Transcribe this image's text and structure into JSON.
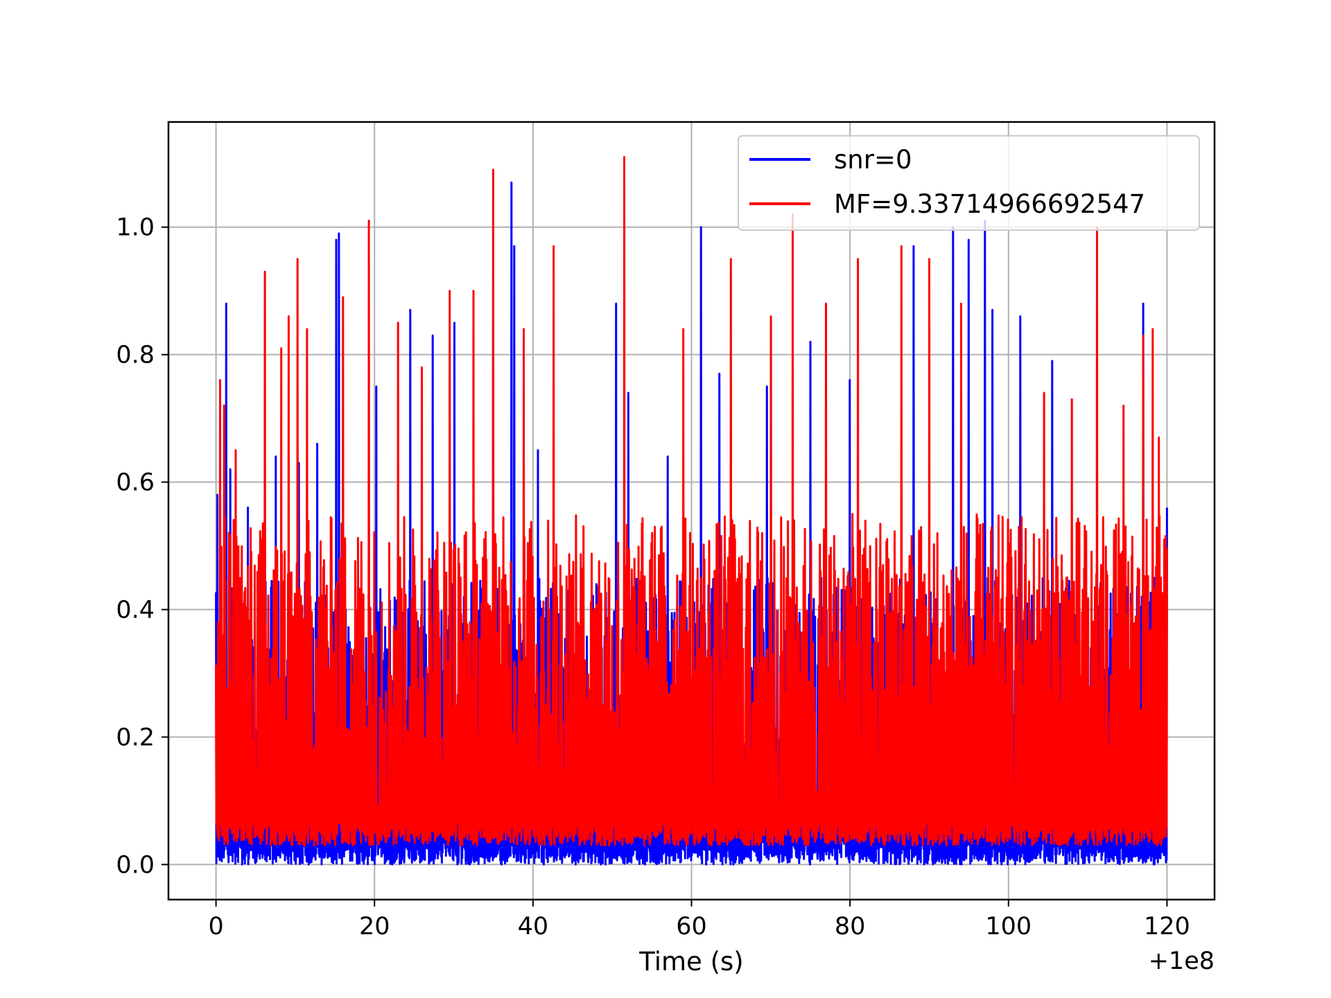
{
  "chart_data": {
    "type": "line",
    "title": "",
    "xlabel": "Time (s)",
    "ylabel": "",
    "x_offset_label": "+1e8",
    "xlim": [
      -6,
      126
    ],
    "ylim": [
      -0.055,
      1.165
    ],
    "xticks": [
      0,
      20,
      40,
      60,
      80,
      100,
      120
    ],
    "xtick_labels": [
      "0",
      "20",
      "40",
      "60",
      "80",
      "100",
      "120"
    ],
    "yticks": [
      0.0,
      0.2,
      0.4,
      0.6,
      0.8,
      1.0
    ],
    "ytick_labels": [
      "0.0",
      "0.2",
      "0.4",
      "0.6",
      "0.8",
      "1.0"
    ],
    "grid": true,
    "legend_position": "upper-right",
    "x_range": [
      0,
      120
    ],
    "series": [
      {
        "name": "snr=0",
        "color": "#0000ff",
        "typical_min": 0.0,
        "typical_max": 0.45,
        "peaks": [
          [
            0.2,
            0.58
          ],
          [
            1.3,
            0.88
          ],
          [
            1.8,
            0.62
          ],
          [
            4.0,
            0.56
          ],
          [
            7.5,
            0.64
          ],
          [
            10.5,
            0.63
          ],
          [
            12.8,
            0.66
          ],
          [
            15.2,
            0.98
          ],
          [
            15.5,
            0.99
          ],
          [
            20.2,
            0.75
          ],
          [
            24.5,
            0.87
          ],
          [
            27.3,
            0.83
          ],
          [
            30.1,
            0.85
          ],
          [
            35.0,
            0.85
          ],
          [
            37.3,
            1.07
          ],
          [
            37.6,
            0.97
          ],
          [
            40.6,
            0.65
          ],
          [
            50.5,
            0.88
          ],
          [
            52.0,
            0.74
          ],
          [
            57.0,
            0.64
          ],
          [
            61.2,
            1.0
          ],
          [
            63.5,
            0.77
          ],
          [
            69.5,
            0.75
          ],
          [
            75.0,
            0.82
          ],
          [
            80.0,
            0.76
          ],
          [
            88.0,
            0.97
          ],
          [
            93.0,
            1.0
          ],
          [
            95.0,
            0.98
          ],
          [
            97.0,
            1.01
          ],
          [
            98.0,
            0.87
          ],
          [
            101.5,
            0.86
          ],
          [
            105.5,
            0.79
          ],
          [
            117.0,
            0.88
          ],
          [
            120.0,
            0.56
          ]
        ]
      },
      {
        "name": "MF=9.33714966692547",
        "color": "#ff0000",
        "typical_min": 0.03,
        "typical_max": 0.55,
        "peaks": [
          [
            0.5,
            0.76
          ],
          [
            1.0,
            0.72
          ],
          [
            2.5,
            0.65
          ],
          [
            6.2,
            0.93
          ],
          [
            8.2,
            0.81
          ],
          [
            9.2,
            0.86
          ],
          [
            10.3,
            0.95
          ],
          [
            11.5,
            0.84
          ],
          [
            16.0,
            0.89
          ],
          [
            19.3,
            1.01
          ],
          [
            23.0,
            0.85
          ],
          [
            26.0,
            0.78
          ],
          [
            29.5,
            0.9
          ],
          [
            32.5,
            0.9
          ],
          [
            35.0,
            1.09
          ],
          [
            38.8,
            0.84
          ],
          [
            42.6,
            0.97
          ],
          [
            51.5,
            1.11
          ],
          [
            59.0,
            0.84
          ],
          [
            65.0,
            0.95
          ],
          [
            70.0,
            0.86
          ],
          [
            72.8,
            1.02
          ],
          [
            77.0,
            0.88
          ],
          [
            81.0,
            0.95
          ],
          [
            86.5,
            0.97
          ],
          [
            90.0,
            0.95
          ],
          [
            94.0,
            0.88
          ],
          [
            104.5,
            0.74
          ],
          [
            108.0,
            0.73
          ],
          [
            111.2,
            1.0
          ],
          [
            114.5,
            0.72
          ],
          [
            117.0,
            0.83
          ],
          [
            118.2,
            0.84
          ],
          [
            119.0,
            0.67
          ]
        ]
      }
    ]
  }
}
